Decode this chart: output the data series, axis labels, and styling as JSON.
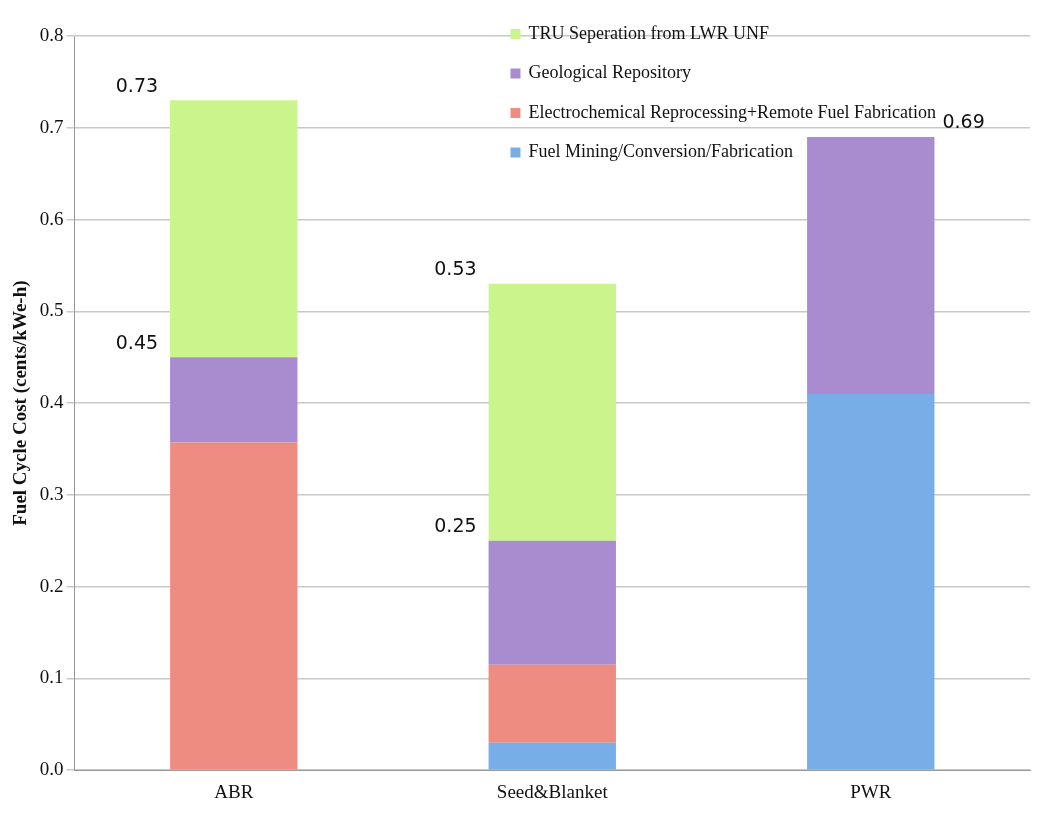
{
  "chart_data": {
    "type": "bar",
    "stacked": true,
    "ylabel": "Fuel Cycle Cost (cents/kWe-h)",
    "categories": [
      "ABR",
      "Seed&Blanket",
      "PWR"
    ],
    "series": [
      {
        "name": "Fuel Mining/Conversion/Fabrication",
        "color": "#78aee8",
        "values": [
          null,
          0.03,
          0.41
        ]
      },
      {
        "name": "Electrochemical Reprocessing+Remote Fuel Fabrication",
        "color": "#ee8c82",
        "values": [
          0.357,
          0.085,
          null
        ]
      },
      {
        "name": "Geological Repository",
        "color": "#a98cd0",
        "values": [
          0.093,
          0.135,
          0.28
        ]
      },
      {
        "name": "TRU Seperation from LWR UNF",
        "color": "#cbf58c",
        "values": [
          0.28,
          0.28,
          null
        ]
      }
    ],
    "ylim": [
      0,
      0.8
    ],
    "yticks": [
      {
        "value": 0,
        "label": "0.0"
      },
      {
        "value": 0.1,
        "label": "0.1"
      },
      {
        "value": 0.2,
        "label": "0.2"
      },
      {
        "value": 0.3,
        "label": "0.3"
      },
      {
        "value": 0.4,
        "label": "0.4"
      },
      {
        "value": 0.5,
        "label": "0.5"
      },
      {
        "value": 0.6,
        "label": "0.6"
      },
      {
        "value": 0.7,
        "label": "0.7"
      },
      {
        "value": 0.8,
        "label": "0.8"
      }
    ],
    "grid": "y",
    "legend": "top right",
    "annotations": [
      "0.73",
      "0.45",
      "0.53",
      "0.25",
      "0.69"
    ]
  }
}
